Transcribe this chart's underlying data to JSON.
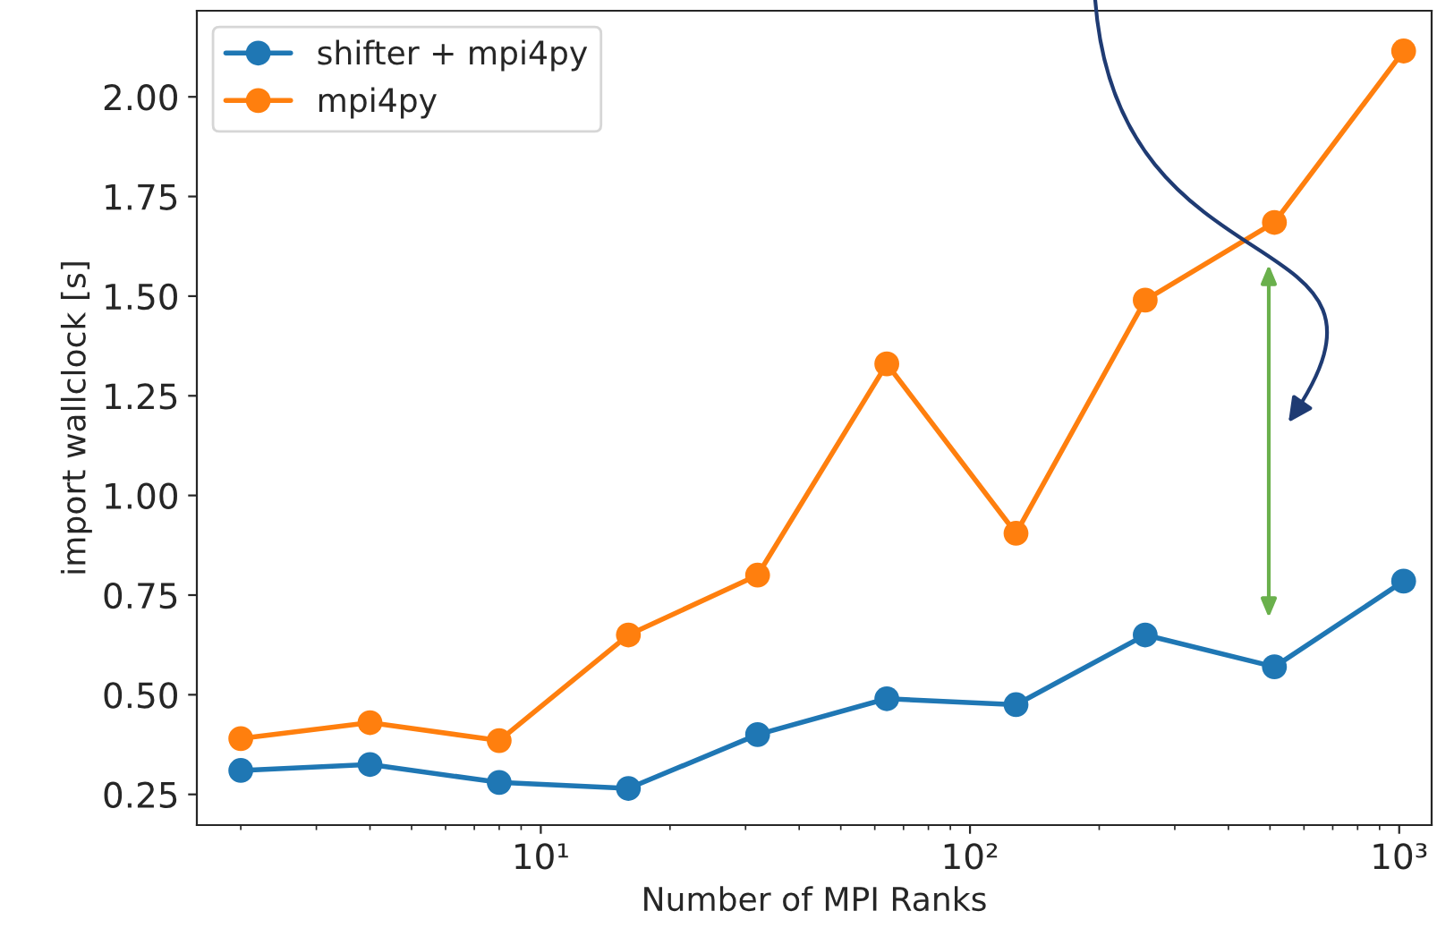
{
  "chart_data": {
    "type": "line",
    "xlabel": "Number of MPI Ranks",
    "ylabel": "import wallclock [s]",
    "x": [
      2,
      4,
      8,
      16,
      32,
      64,
      128,
      256,
      512,
      1024
    ],
    "series": [
      {
        "name": "shifter + mpi4py",
        "color": "#1f77b4",
        "values": [
          0.31,
          0.325,
          0.28,
          0.265,
          0.4,
          0.49,
          0.475,
          0.65,
          0.57,
          0.785
        ]
      },
      {
        "name": "mpi4py",
        "color": "#ff7f0e",
        "values": [
          0.39,
          0.43,
          0.385,
          0.65,
          0.8,
          1.33,
          0.905,
          1.49,
          1.685,
          2.115
        ]
      }
    ],
    "log": "x",
    "xlim": [
      1.58,
      1190
    ],
    "ylim": [
      0.173,
      2.216
    ],
    "xticks": [
      {
        "value": 10,
        "label": "10¹"
      },
      {
        "value": 100,
        "label": "10²"
      },
      {
        "value": 1000,
        "label": "10³"
      }
    ],
    "yticks": [
      {
        "value": 0.25,
        "label": "0.25"
      },
      {
        "value": 0.5,
        "label": "0.50"
      },
      {
        "value": 0.75,
        "label": "0.75"
      },
      {
        "value": 1.0,
        "label": "1.00"
      },
      {
        "value": 1.25,
        "label": "1.25"
      },
      {
        "value": 1.5,
        "label": "1.50"
      },
      {
        "value": 1.75,
        "label": "1.75"
      },
      {
        "value": 2.0,
        "label": "2.00"
      }
    ],
    "marker": "circle",
    "legend": "top left",
    "grid": false
  }
}
